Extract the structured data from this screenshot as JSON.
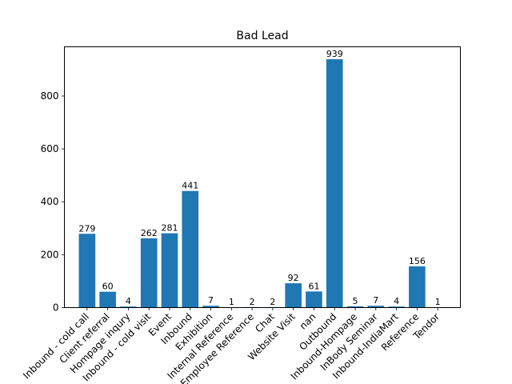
{
  "chart_data": {
    "type": "bar",
    "title": "Bad Lead",
    "xlabel": "",
    "ylabel": "",
    "categories": [
      "Inbound - cold call",
      "Client referral",
      "Hompage inqury",
      "Inbound - cold visit",
      "Event",
      "Inbound",
      "Exhibition",
      "Internal Reference",
      "Employee Reference",
      "Chat",
      "Website Visit",
      "nan",
      "Outbound",
      "Inbound-Hompage",
      "InBody Seminar",
      "Inbound-IndiaMart",
      "Reference",
      "Tendor"
    ],
    "values": [
      279,
      60,
      4,
      262,
      281,
      441,
      7,
      1,
      2,
      2,
      92,
      61,
      939,
      5,
      7,
      4,
      156,
      1
    ],
    "ylim": [
      0,
      986
    ],
    "yticks": [
      0,
      200,
      400,
      600,
      800
    ],
    "grid": false,
    "legend": "none",
    "bar_color": "#1f77b4"
  }
}
